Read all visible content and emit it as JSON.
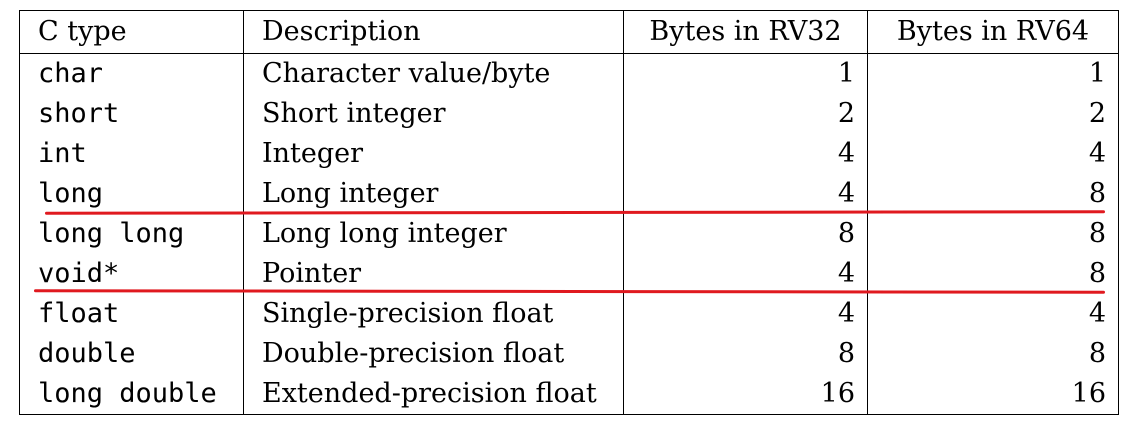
{
  "table": {
    "headers": [
      "C type",
      "Description",
      "Bytes in RV32",
      "Bytes in RV64"
    ],
    "rows": [
      {
        "ctype": "char",
        "description": "Character value/byte",
        "rv32": "1",
        "rv64": "1"
      },
      {
        "ctype": "short",
        "description": "Short integer",
        "rv32": "2",
        "rv64": "2"
      },
      {
        "ctype": "int",
        "description": "Integer",
        "rv32": "4",
        "rv64": "4"
      },
      {
        "ctype": "long",
        "description": "Long integer",
        "rv32": "4",
        "rv64": "8"
      },
      {
        "ctype": "long long",
        "description": "Long long integer",
        "rv32": "8",
        "rv64": "8"
      },
      {
        "ctype": "void*",
        "description": "Pointer",
        "rv32": "4",
        "rv64": "8"
      },
      {
        "ctype": "float",
        "description": "Single-precision float",
        "rv32": "4",
        "rv64": "4"
      },
      {
        "ctype": "double",
        "description": "Double-precision float",
        "rv32": "8",
        "rv64": "8"
      },
      {
        "ctype": "long double",
        "description": "Extended-precision float",
        "rv32": "16",
        "rv64": "16"
      }
    ]
  },
  "annotation": {
    "line_color": "#e0191f"
  }
}
